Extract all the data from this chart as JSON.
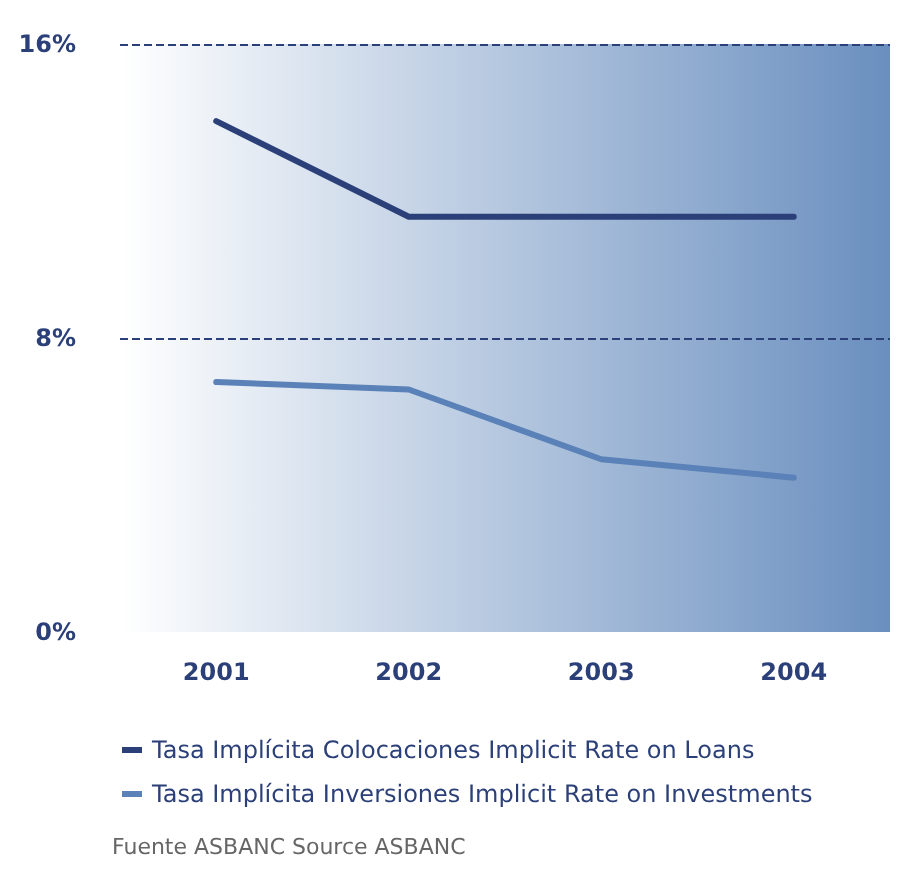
{
  "chart_data": {
    "type": "line",
    "categories": [
      "2001",
      "2002",
      "2003",
      "2004"
    ],
    "series": [
      {
        "name": "Tasa Implícita Colocaciones Implicit Rate on Loans",
        "color": "#2b3f78",
        "values": [
          13.9,
          11.3,
          11.3,
          11.3
        ]
      },
      {
        "name": "Tasa Implícita Inversiones Implicit Rate on Investments",
        "color": "#5b82b8",
        "values": [
          6.8,
          6.6,
          4.7,
          4.2
        ]
      }
    ],
    "ylim": [
      0,
      16
    ],
    "yticks": [
      {
        "value": 0,
        "label": "0%"
      },
      {
        "value": 8,
        "label": "8%"
      },
      {
        "value": 16,
        "label": "16%"
      }
    ],
    "ref_lines": [
      {
        "axis": "y",
        "value": 8,
        "color": "#2b3f78",
        "line_style": "dashed"
      },
      {
        "axis": "y",
        "value": 16,
        "color": "#2b3f78",
        "line_style": "dashed"
      }
    ],
    "legend": "bottom left",
    "marker": "none",
    "line_style": "solid",
    "annotations": [
      "Fuente ASBANC Source ASBANC"
    ]
  }
}
